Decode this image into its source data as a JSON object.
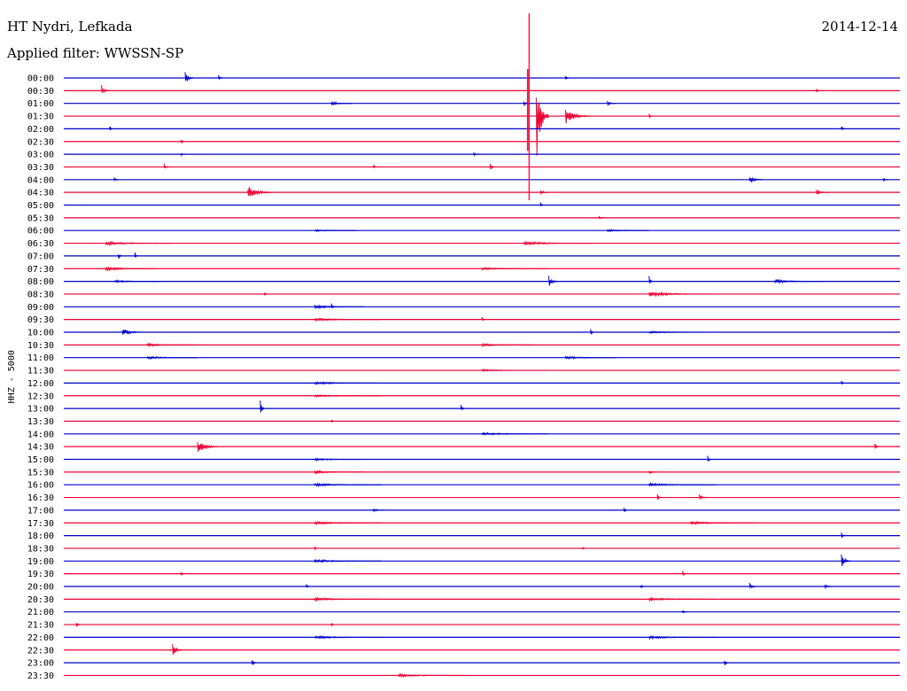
{
  "header": {
    "station": "HT Nydri, Lefkada",
    "filter": "Applied filter: WWSSN-SP",
    "date": "2014-12-14"
  },
  "chart_data": {
    "type": "seismogram",
    "ylabel": "HHZ - 5000",
    "colors": [
      "#0000cc",
      "#ee0033"
    ],
    "rows": [
      {
        "label": "00:00",
        "events": [
          [
            0.145,
            0.6,
            1.0
          ],
          [
            0.185,
            0.25,
            0.6
          ],
          [
            0.6,
            0.2,
            0.4
          ]
        ]
      },
      {
        "label": "00:30",
        "events": [
          [
            0.045,
            0.5,
            1.0
          ],
          [
            0.9,
            0.15,
            0.3
          ]
        ]
      },
      {
        "label": "01:00",
        "events": [
          [
            0.32,
            0.2,
            2.5
          ],
          [
            0.55,
            0.2,
            0.8
          ],
          [
            0.65,
            0.2,
            1.0
          ]
        ]
      },
      {
        "label": "01:30",
        "events": [
          [
            0.565,
            4.0,
            1.5
          ],
          [
            0.6,
            0.7,
            3.0
          ],
          [
            0.7,
            0.2,
            0.5
          ]
        ]
      },
      {
        "label": "02:00",
        "events": [
          [
            0.055,
            0.2,
            0.3
          ],
          [
            0.93,
            0.2,
            0.5
          ]
        ]
      },
      {
        "label": "02:30",
        "events": [
          [
            0.14,
            0.2,
            0.3
          ]
        ]
      },
      {
        "label": "03:00",
        "events": [
          [
            0.14,
            0.15,
            0.5
          ],
          [
            0.49,
            0.2,
            0.8
          ]
        ]
      },
      {
        "label": "03:30",
        "events": [
          [
            0.12,
            0.3,
            0.6
          ],
          [
            0.37,
            0.2,
            0.3
          ],
          [
            0.51,
            0.3,
            0.6
          ]
        ]
      },
      {
        "label": "04:00",
        "events": [
          [
            0.06,
            0.2,
            0.6
          ],
          [
            0.82,
            0.4,
            1.5
          ],
          [
            0.98,
            0.2,
            0.6
          ]
        ]
      },
      {
        "label": "04:30",
        "events": [
          [
            0.22,
            0.6,
            3.0
          ],
          [
            0.57,
            0.3,
            1.0
          ],
          [
            0.9,
            0.2,
            1.5
          ]
        ]
      },
      {
        "label": "05:00",
        "events": [
          [
            0.57,
            0.2,
            0.3
          ]
        ]
      },
      {
        "label": "05:30",
        "events": [
          [
            0.64,
            0.15,
            0.8
          ]
        ]
      },
      {
        "label": "06:00",
        "events": [
          [
            0.3,
            0.1,
            5.0
          ],
          [
            0.65,
            0.1,
            5.0
          ]
        ]
      },
      {
        "label": "06:30",
        "events": [
          [
            0.05,
            0.15,
            8.0
          ],
          [
            0.55,
            0.15,
            8.0
          ]
        ]
      },
      {
        "label": "07:00",
        "events": [
          [
            0.065,
            0.3,
            0.4
          ],
          [
            0.085,
            0.3,
            0.4
          ]
        ]
      },
      {
        "label": "07:30",
        "events": [
          [
            0.05,
            0.15,
            6.0
          ],
          [
            0.5,
            0.1,
            8.0
          ]
        ]
      },
      {
        "label": "08:00",
        "events": [
          [
            0.06,
            0.1,
            6.0
          ],
          [
            0.58,
            0.5,
            1.2
          ],
          [
            0.7,
            0.45,
            0.3
          ],
          [
            0.85,
            0.15,
            6.0
          ]
        ]
      },
      {
        "label": "08:30",
        "events": [
          [
            0.24,
            0.15,
            0.3
          ],
          [
            0.7,
            0.2,
            8.0
          ]
        ]
      },
      {
        "label": "09:00",
        "events": [
          [
            0.3,
            0.15,
            6.0
          ],
          [
            0.32,
            0.3,
            0.3
          ]
        ]
      },
      {
        "label": "09:30",
        "events": [
          [
            0.3,
            0.12,
            8.0
          ],
          [
            0.5,
            0.25,
            0.3
          ]
        ]
      },
      {
        "label": "10:00",
        "events": [
          [
            0.07,
            0.35,
            2.5
          ],
          [
            0.63,
            0.25,
            0.4
          ],
          [
            0.7,
            0.1,
            8.0
          ]
        ]
      },
      {
        "label": "10:30",
        "events": [
          [
            0.1,
            0.12,
            6.0
          ],
          [
            0.5,
            0.12,
            6.0
          ]
        ]
      },
      {
        "label": "11:00",
        "events": [
          [
            0.1,
            0.12,
            6.0
          ],
          [
            0.6,
            0.12,
            6.0
          ]
        ]
      },
      {
        "label": "11:30",
        "events": [
          [
            0.5,
            0.08,
            8.0
          ]
        ]
      },
      {
        "label": "12:00",
        "events": [
          [
            0.3,
            0.12,
            8.0
          ],
          [
            0.93,
            0.15,
            0.3
          ]
        ]
      },
      {
        "label": "12:30",
        "events": [
          [
            0.3,
            0.1,
            8.0
          ]
        ]
      },
      {
        "label": "13:00",
        "events": [
          [
            0.235,
            0.8,
            0.5
          ],
          [
            0.475,
            0.35,
            0.4
          ]
        ]
      },
      {
        "label": "13:30",
        "events": [
          [
            0.32,
            0.15,
            0.3
          ]
        ]
      },
      {
        "label": "14:00",
        "events": [
          [
            0.5,
            0.12,
            8.0
          ]
        ]
      },
      {
        "label": "14:30",
        "events": [
          [
            0.16,
            0.6,
            2.5
          ],
          [
            0.97,
            0.3,
            0.4
          ]
        ]
      },
      {
        "label": "15:00",
        "events": [
          [
            0.3,
            0.1,
            6.0
          ],
          [
            0.77,
            0.3,
            0.3
          ]
        ]
      },
      {
        "label": "15:30",
        "events": [
          [
            0.3,
            0.12,
            6.0
          ],
          [
            0.7,
            0.15,
            1.0
          ]
        ]
      },
      {
        "label": "16:00",
        "events": [
          [
            0.3,
            0.12,
            8.0
          ],
          [
            0.7,
            0.12,
            8.0
          ]
        ]
      },
      {
        "label": "16:30",
        "events": [
          [
            0.71,
            0.3,
            0.4
          ],
          [
            0.76,
            0.25,
            1.0
          ]
        ]
      },
      {
        "label": "17:00",
        "events": [
          [
            0.37,
            0.2,
            1.5
          ],
          [
            0.67,
            0.2,
            0.3
          ]
        ]
      },
      {
        "label": "17:30",
        "events": [
          [
            0.3,
            0.12,
            8.0
          ],
          [
            0.75,
            0.12,
            8.0
          ]
        ]
      },
      {
        "label": "18:00",
        "events": [
          [
            0.93,
            0.25,
            0.5
          ]
        ]
      },
      {
        "label": "18:30",
        "events": [
          [
            0.3,
            0.12,
            0.5
          ],
          [
            0.62,
            0.12,
            0.5
          ]
        ]
      },
      {
        "label": "19:00",
        "events": [
          [
            0.3,
            0.12,
            8.0
          ],
          [
            0.93,
            0.6,
            1.2
          ]
        ]
      },
      {
        "label": "19:30",
        "events": [
          [
            0.14,
            0.2,
            0.4
          ],
          [
            0.74,
            0.35,
            0.3
          ]
        ]
      },
      {
        "label": "20:00",
        "events": [
          [
            0.29,
            0.2,
            0.3
          ],
          [
            0.69,
            0.2,
            0.3
          ],
          [
            0.82,
            0.3,
            1.0
          ],
          [
            0.91,
            0.2,
            1.0
          ]
        ]
      },
      {
        "label": "20:30",
        "events": [
          [
            0.3,
            0.12,
            8.0
          ],
          [
            0.7,
            0.12,
            8.0
          ]
        ]
      },
      {
        "label": "21:00",
        "events": [
          [
            0.74,
            0.2,
            0.3
          ]
        ]
      },
      {
        "label": "21:30",
        "events": [
          [
            0.015,
            0.25,
            0.4
          ],
          [
            0.32,
            0.12,
            0.3
          ]
        ]
      },
      {
        "label": "22:00",
        "events": [
          [
            0.3,
            0.12,
            8.0
          ],
          [
            0.7,
            0.12,
            8.0
          ]
        ]
      },
      {
        "label": "22:30",
        "events": [
          [
            0.13,
            0.5,
            1.2
          ]
        ]
      },
      {
        "label": "23:00",
        "events": [
          [
            0.225,
            0.35,
            0.5
          ],
          [
            0.79,
            0.3,
            0.6
          ]
        ]
      },
      {
        "label": "23:30",
        "events": [
          [
            0.4,
            0.12,
            8.0
          ]
        ]
      }
    ]
  }
}
